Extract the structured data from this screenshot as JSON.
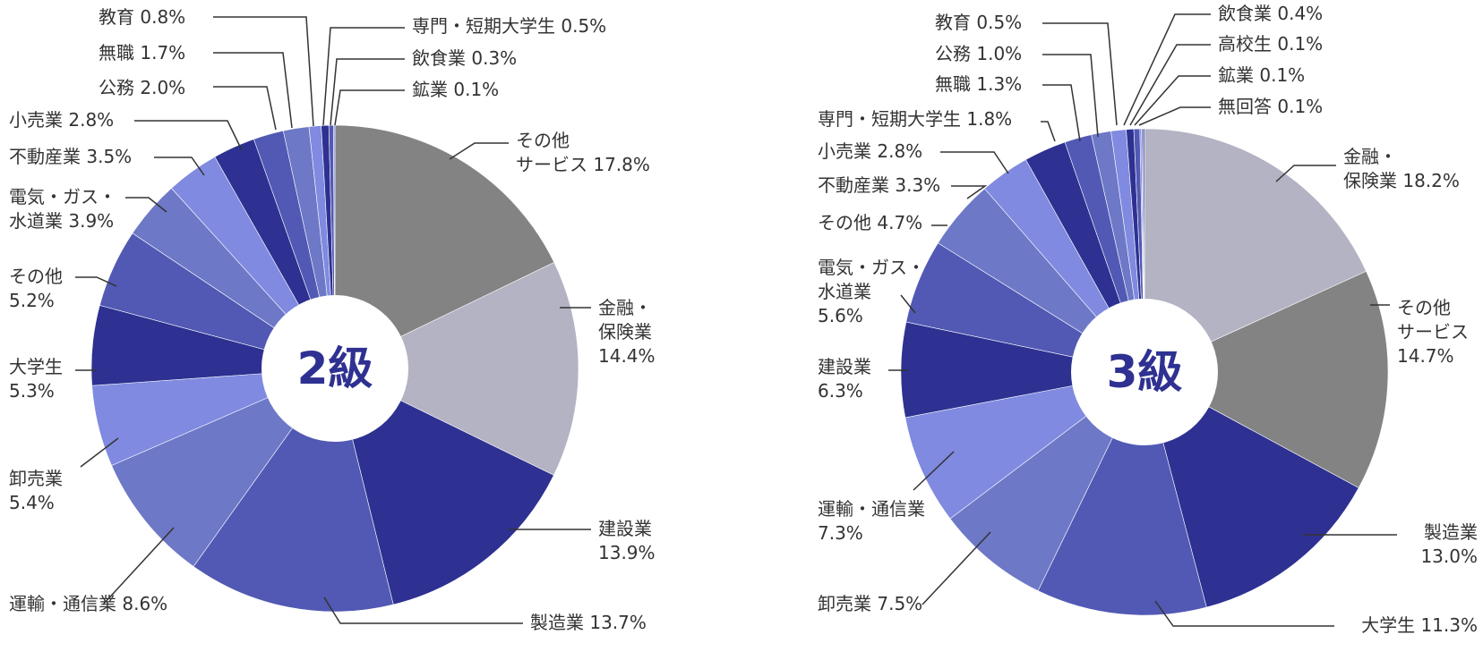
{
  "colors": {
    "darkgray": "#838383",
    "lightgray": "#b3b3c3",
    "navy": "#2e3191",
    "indigo": "#5159b4",
    "slate": "#6d78c7",
    "periwinkle": "#7f8ae0"
  },
  "chart_data": [
    {
      "type": "pie",
      "center_label": "2級",
      "unit": "%",
      "slices": [
        {
          "name": "その他サービス",
          "lines": [
            "その他",
            "サービス 17.8%"
          ],
          "value": 17.8,
          "color": "#838383"
        },
        {
          "name": "金融・保険業",
          "lines": [
            "金融・",
            "保険業",
            "14.4%"
          ],
          "value": 14.4,
          "color": "#b3b3c3"
        },
        {
          "name": "建設業",
          "lines": [
            "建設業",
            "13.9%"
          ],
          "value": 13.9,
          "color": "#2e3191"
        },
        {
          "name": "製造業",
          "lines": [
            "製造業 13.7%"
          ],
          "value": 13.7,
          "color": "#5159b4"
        },
        {
          "name": "運輸・通信業",
          "lines": [
            "運輸・通信業 8.6%"
          ],
          "value": 8.6,
          "color": "#6d78c7"
        },
        {
          "name": "卸売業",
          "lines": [
            "卸売業",
            "5.4%"
          ],
          "value": 5.4,
          "color": "#7f8ae0"
        },
        {
          "name": "大学生",
          "lines": [
            "大学生",
            "5.3%"
          ],
          "value": 5.3,
          "color": "#2e3191"
        },
        {
          "name": "その他",
          "lines": [
            "その他",
            "5.2%"
          ],
          "value": 5.2,
          "color": "#5159b4"
        },
        {
          "name": "電気・ガス・水道業",
          "lines": [
            "電気・ガス・",
            "水道業 3.9%"
          ],
          "value": 3.9,
          "color": "#6d78c7"
        },
        {
          "name": "不動産業",
          "lines": [
            "不動産業 3.5%"
          ],
          "value": 3.5,
          "color": "#7f8ae0"
        },
        {
          "name": "小売業",
          "lines": [
            "小売業 2.8%"
          ],
          "value": 2.8,
          "color": "#2e3191"
        },
        {
          "name": "公務",
          "lines": [
            "公務 2.0%"
          ],
          "value": 2.0,
          "color": "#5159b4"
        },
        {
          "name": "無職",
          "lines": [
            "無職 1.7%"
          ],
          "value": 1.7,
          "color": "#6d78c7"
        },
        {
          "name": "教育",
          "lines": [
            "教育 0.8%"
          ],
          "value": 0.8,
          "color": "#7f8ae0"
        },
        {
          "name": "専門・短期大学生",
          "lines": [
            "専門・短期大学生 0.5%"
          ],
          "value": 0.5,
          "color": "#2e3191"
        },
        {
          "name": "飲食業",
          "lines": [
            "飲食業 0.3%"
          ],
          "value": 0.3,
          "color": "#5159b4"
        },
        {
          "name": "鉱業",
          "lines": [
            "鉱業 0.1%"
          ],
          "value": 0.1,
          "color": "#7f8ae0"
        }
      ]
    },
    {
      "type": "pie",
      "center_label": "3級",
      "unit": "%",
      "slices": [
        {
          "name": "金融・保険業",
          "lines": [
            "金融・",
            "保険業 18.2%"
          ],
          "value": 18.2,
          "color": "#b3b3c3"
        },
        {
          "name": "その他サービス",
          "lines": [
            "その他",
            "サービス",
            "14.7%"
          ],
          "value": 14.7,
          "color": "#838383"
        },
        {
          "name": "製造業",
          "lines": [
            "製造業",
            "13.0%"
          ],
          "value": 13.0,
          "color": "#2e3191"
        },
        {
          "name": "大学生",
          "lines": [
            "大学生 11.3%"
          ],
          "value": 11.3,
          "color": "#5159b4"
        },
        {
          "name": "卸売業",
          "lines": [
            "卸売業 7.5%"
          ],
          "value": 7.5,
          "color": "#6d78c7"
        },
        {
          "name": "運輸・通信業",
          "lines": [
            "運輸・通信業",
            "7.3%"
          ],
          "value": 7.3,
          "color": "#7f8ae0"
        },
        {
          "name": "建設業",
          "lines": [
            "建設業",
            "6.3%"
          ],
          "value": 6.3,
          "color": "#2e3191"
        },
        {
          "name": "電気・ガス・水道業",
          "lines": [
            "電気・ガス・",
            "水道業",
            "5.6%"
          ],
          "value": 5.6,
          "color": "#5159b4"
        },
        {
          "name": "その他",
          "lines": [
            "その他 4.7%"
          ],
          "value": 4.7,
          "color": "#6d78c7"
        },
        {
          "name": "不動産業",
          "lines": [
            "不動産業 3.3%"
          ],
          "value": 3.3,
          "color": "#7f8ae0"
        },
        {
          "name": "小売業",
          "lines": [
            "小売業 2.8%"
          ],
          "value": 2.8,
          "color": "#2e3191"
        },
        {
          "name": "専門・短期大学生",
          "lines": [
            "専門・短期大学生 1.8%"
          ],
          "value": 1.8,
          "color": "#5159b4"
        },
        {
          "name": "無職",
          "lines": [
            "無職 1.3%"
          ],
          "value": 1.3,
          "color": "#6d78c7"
        },
        {
          "name": "公務",
          "lines": [
            "公務 1.0%"
          ],
          "value": 1.0,
          "color": "#7f8ae0"
        },
        {
          "name": "教育",
          "lines": [
            "教育 0.5%"
          ],
          "value": 0.5,
          "color": "#2e3191"
        },
        {
          "name": "飲食業",
          "lines": [
            "飲食業 0.4%"
          ],
          "value": 0.4,
          "color": "#5159b4"
        },
        {
          "name": "高校生",
          "lines": [
            "高校生 0.1%"
          ],
          "value": 0.1,
          "color": "#6d78c7"
        },
        {
          "name": "鉱業",
          "lines": [
            "鉱業 0.1%"
          ],
          "value": 0.1,
          "color": "#7f8ae0"
        },
        {
          "name": "無回答",
          "lines": [
            "無回答 0.1%"
          ],
          "value": 0.1,
          "color": "#2e3191"
        }
      ]
    }
  ]
}
